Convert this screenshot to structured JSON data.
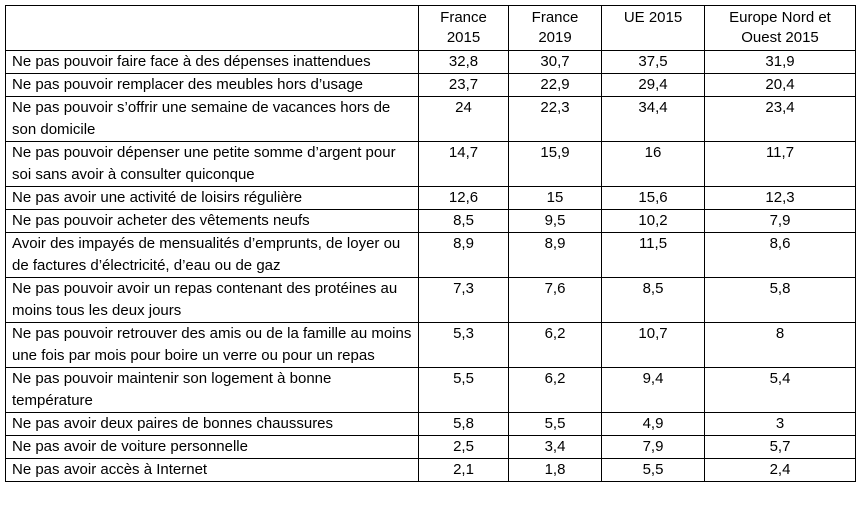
{
  "table": {
    "header": [
      [
        "France",
        "2015"
      ],
      [
        "France",
        "2019"
      ],
      [
        "UE 2015"
      ],
      [
        "Europe Nord et",
        "Ouest 2015"
      ]
    ],
    "rows": [
      {
        "label": "Ne pas pouvoir faire face à des dépenses inattendues",
        "values": [
          "32,8",
          "30,7",
          "37,5",
          "31,9"
        ]
      },
      {
        "label": "Ne pas pouvoir remplacer des meubles hors d’usage",
        "values": [
          "23,7",
          "22,9",
          "29,4",
          "20,4"
        ]
      },
      {
        "label": "Ne pas pouvoir s’offrir une semaine de vacances hors de son domicile",
        "values": [
          "24",
          "22,3",
          "34,4",
          "23,4"
        ]
      },
      {
        "label": "Ne pas pouvoir dépenser une petite somme d’argent pour soi sans avoir à consulter quiconque",
        "values": [
          "14,7",
          "15,9",
          "16",
          "11,7"
        ]
      },
      {
        "label": "Ne pas avoir une activité de loisirs régulière",
        "values": [
          "12,6",
          "15",
          "15,6",
          "12,3"
        ]
      },
      {
        "label": "Ne pas pouvoir acheter des vêtements neufs",
        "values": [
          "8,5",
          "9,5",
          "10,2",
          "7,9"
        ]
      },
      {
        "label": "Avoir des impayés de mensualités d’emprunts, de loyer ou de factures d’électricité, d’eau ou de gaz",
        "values": [
          "8,9",
          "8,9",
          "11,5",
          "8,6"
        ]
      },
      {
        "label": "Ne pas pouvoir avoir un repas contenant des protéines au moins tous les deux jours",
        "values": [
          "7,3",
          "7,6",
          "8,5",
          "5,8"
        ]
      },
      {
        "label": "Ne pas pouvoir retrouver des amis ou de la famille au moins une fois par mois pour boire un verre ou pour un repas",
        "values": [
          "5,3",
          "6,2",
          "10,7",
          "8"
        ]
      },
      {
        "label": "Ne pas pouvoir maintenir son logement à bonne température",
        "values": [
          "5,5",
          "6,2",
          "9,4",
          "5,4"
        ]
      },
      {
        "label": "Ne pas avoir deux paires de bonnes chaussures",
        "values": [
          "5,8",
          "5,5",
          "4,9",
          "3"
        ]
      },
      {
        "label": "Ne pas avoir de voiture personnelle",
        "values": [
          "2,5",
          "3,4",
          "7,9",
          "5,7"
        ]
      },
      {
        "label": "Ne pas avoir accès à Internet",
        "values": [
          "2,1",
          "1,8",
          "5,5",
          "2,4"
        ]
      }
    ]
  }
}
